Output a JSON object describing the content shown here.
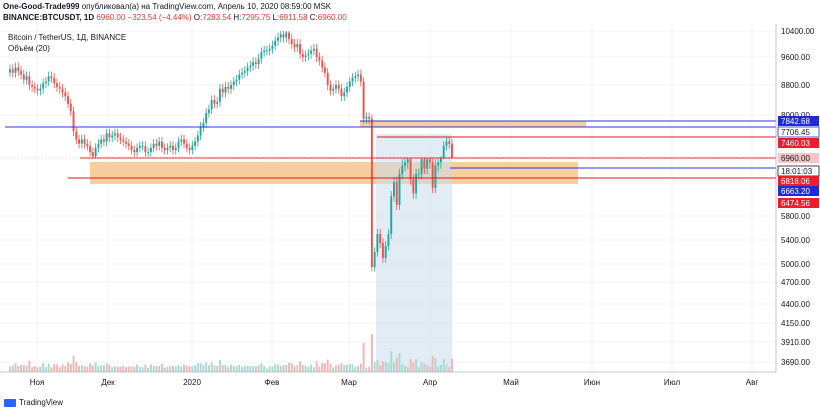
{
  "header": {
    "author": "One-Good-Trade999",
    "published": "опубликовал(а) на TradingView.com, Апрель 10, 2020 08:59:00 MSK",
    "symbol": "BINANCE:BTCUSDT, 1D",
    "price": "6960.00",
    "change": "−323.54 (−4.44%)",
    "o_label": "O:",
    "o_value": "7283.54",
    "h_label": "H:",
    "h_value": "7295.75",
    "l_label": "L:",
    "l_value": "6911.58",
    "c_label": "C:",
    "c_value": "6960.00"
  },
  "legend": {
    "title": "Bitcoin / TetherUS, 1Д, BINANCE",
    "volume": "Объём (20)"
  },
  "footer": {
    "brand": "TradingView"
  },
  "colors": {
    "up": "#26a69a",
    "down": "#ef5350",
    "hline_red": "#e8111f",
    "hline_blue": "#2d37d9",
    "zone": "#f7c58d",
    "vp": "#c8dcec",
    "axis_red": "#ee1d2e",
    "axis_blue": "#1e2bd6"
  },
  "chart_data": {
    "type": "candlestick",
    "x_ticks": [
      "Ноя",
      "Дек",
      "2020",
      "Фев",
      "Мар",
      "Апр",
      "Май",
      "Июн",
      "Июл",
      "Авг"
    ],
    "y_ticks": [
      "10400.00",
      "9600.00",
      "8800.00",
      "8000.00",
      "5800.00",
      "5400.00",
      "5000.00",
      "4700.00",
      "4400.00",
      "4150.00",
      "3910.00",
      "3690.00"
    ],
    "price_labels": [
      {
        "text": "7842.68",
        "style": "blue"
      },
      {
        "text": "7706.45",
        "style": "outline-blue"
      },
      {
        "text": "7460.03",
        "style": "red"
      },
      {
        "text": "6960.00",
        "style": "pink"
      },
      {
        "text": "18:01:03",
        "style": "outline"
      },
      {
        "text": "6818.06",
        "style": "red"
      },
      {
        "text": "6663.20",
        "style": "blue"
      },
      {
        "text": "6474.56",
        "style": "red"
      }
    ],
    "candles_close": [
      9250,
      9150,
      9300,
      9200,
      9100,
      8950,
      9050,
      8800,
      8750,
      8700,
      8650,
      8700,
      8850,
      8900,
      9050,
      9000,
      8850,
      8750,
      8700,
      8600,
      8500,
      8300,
      8100,
      7600,
      7400,
      7300,
      7400,
      7300,
      7250,
      7100,
      7000,
      7200,
      7300,
      7400,
      7350,
      7550,
      7450,
      7500,
      7550,
      7450,
      7400,
      7350,
      7300,
      7250,
      7150,
      7100,
      7200,
      7250,
      7250,
      7100,
      7100,
      7200,
      7300,
      7250,
      7350,
      7200,
      7150,
      7200,
      7250,
      7150,
      7200,
      7350,
      7400,
      7300,
      7200,
      7150,
      7250,
      7350,
      7500,
      7700,
      7800,
      8050,
      8150,
      8400,
      8300,
      8350,
      8700,
      8600,
      8750,
      8700,
      8800,
      8900,
      8950,
      9100,
      9150,
      9200,
      9300,
      9350,
      9450,
      9400,
      9550,
      9750,
      9800,
      9800,
      9850,
      9950,
      10100,
      10200,
      10300,
      10200,
      10350,
      10150,
      10000,
      9900,
      10000,
      9700,
      9600,
      9650,
      9700,
      9800,
      9850,
      9600,
      9500,
      9300,
      9150,
      8800,
      8650,
      8700,
      8800,
      8700,
      8500,
      8600,
      8750,
      8900,
      9000,
      9050,
      9100,
      8900,
      7900,
      7950,
      7900,
      4950,
      5200,
      5500,
      5350,
      5100,
      5300,
      5500,
      6150,
      6400,
      6000,
      6550,
      6700,
      6750,
      6800,
      6450,
      6200,
      6550,
      6550,
      6800,
      6650,
      6800,
      6750,
      6300,
      6700,
      6750,
      6900,
      7250,
      7350,
      7300,
      6960
    ],
    "annotations": [
      {
        "type": "hline",
        "price": 7842.68,
        "color": "blue"
      },
      {
        "type": "hline",
        "price": 7706.45,
        "color": "blue"
      },
      {
        "type": "hline",
        "price": 7460.03,
        "color": "red"
      },
      {
        "type": "hline",
        "price": 6818.06,
        "color": "red"
      },
      {
        "type": "hline",
        "price": 6663.2,
        "color": "blue"
      },
      {
        "type": "hline",
        "price": 6474.56,
        "color": "red"
      },
      {
        "type": "zone",
        "from": 7706.45,
        "to": 7842.68
      },
      {
        "type": "zone",
        "from": 6663.2,
        "to": 6960.0
      }
    ]
  }
}
